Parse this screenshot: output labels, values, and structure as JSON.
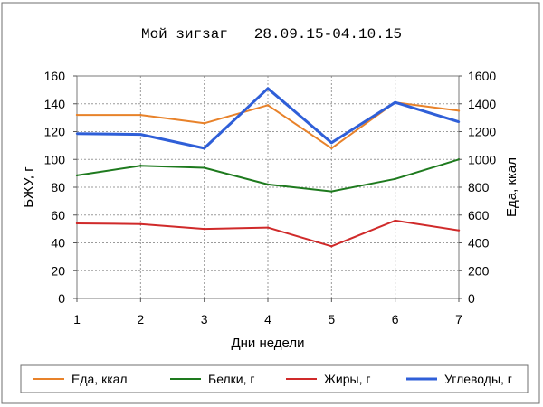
{
  "chart_data": {
    "type": "line",
    "title": "Мой зигзаг   28.09.15-04.10.15",
    "xlabel": "Дни недели",
    "ylabel": "БЖУ, г",
    "y2label": "Еда, ккал",
    "x": [
      1,
      2,
      3,
      4,
      5,
      6,
      7
    ],
    "x_ticks": [
      "1",
      "2",
      "3",
      "4",
      "5",
      "6",
      "7"
    ],
    "ylim": [
      0,
      160
    ],
    "y_ticks": [
      "0",
      "20",
      "40",
      "60",
      "80",
      "100",
      "120",
      "140",
      "160"
    ],
    "y2lim": [
      0,
      1600
    ],
    "y2_ticks": [
      "0",
      "200",
      "400",
      "600",
      "800",
      "1000",
      "1200",
      "1400",
      "1600"
    ],
    "grid": true,
    "legend_position": "bottom",
    "series": [
      {
        "name": "Еда, ккал",
        "axis": "right",
        "color": "#E8822A",
        "values": [
          1320,
          1320,
          1260,
          1390,
          1080,
          1410,
          1350
        ]
      },
      {
        "name": "Белки, г",
        "axis": "left",
        "color": "#1E7A1E",
        "values": [
          88.5,
          95.5,
          94,
          82,
          77,
          86,
          100
        ]
      },
      {
        "name": "Жиры, г",
        "axis": "left",
        "color": "#D02A2A",
        "values": [
          54,
          53.5,
          50,
          51,
          37.5,
          56,
          49
        ]
      },
      {
        "name": "Углеводы, г",
        "axis": "left",
        "color": "#2F5FD8",
        "values": [
          118.5,
          118,
          108,
          151,
          112,
          141,
          127
        ]
      }
    ]
  }
}
